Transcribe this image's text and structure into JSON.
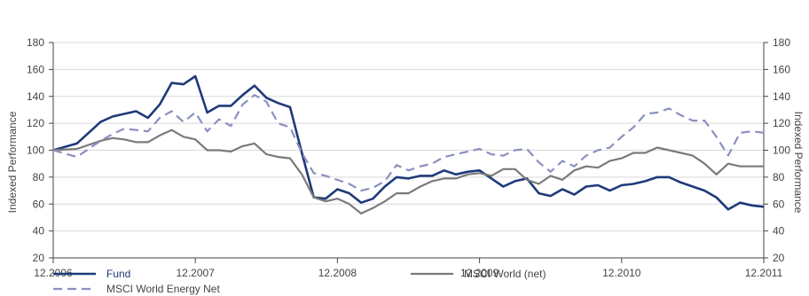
{
  "chart_data": {
    "type": "line",
    "title": "",
    "ylabel_left": "Indexed Performance",
    "ylabel_right": "Indexed Performance",
    "ylim": [
      20,
      180
    ],
    "yticks": [
      20,
      40,
      60,
      80,
      100,
      120,
      140,
      160,
      180
    ],
    "xlim": [
      0,
      60
    ],
    "xticks": [
      {
        "x": 0,
        "label": "12.2006"
      },
      {
        "x": 12,
        "label": "12.2007"
      },
      {
        "x": 24,
        "label": "12.2008"
      },
      {
        "x": 36,
        "label": "12.2009"
      },
      {
        "x": 48,
        "label": "12.2010"
      },
      {
        "x": 60,
        "label": "12.2011"
      }
    ],
    "grid": "horizontal",
    "colors": {
      "fund": "#1f3a7a",
      "energy": "#8a90c0",
      "world": "#7a7a7a",
      "axis": "#444444",
      "grid": "#d9d9d9"
    },
    "series": [
      {
        "name": "Fund",
        "style": "solid",
        "color": "#1f3a7a",
        "x": [
          0,
          2,
          4,
          5,
          6,
          7,
          8,
          9,
          10,
          11,
          12,
          13,
          14,
          15,
          16,
          17,
          18,
          19,
          20,
          21,
          22,
          23,
          24,
          25,
          26,
          27,
          28,
          29,
          30,
          31,
          32,
          33,
          34,
          35,
          36,
          37,
          38,
          39,
          40,
          41,
          42,
          43,
          44,
          45,
          46,
          47,
          48,
          49,
          50,
          51,
          52,
          53,
          54,
          55,
          56,
          57,
          58,
          59,
          60
        ],
        "values": [
          100,
          105,
          121,
          125,
          127,
          129,
          124,
          134,
          150,
          149,
          155,
          128,
          133,
          133,
          141,
          148,
          139,
          135,
          132,
          98,
          65,
          64,
          71,
          68,
          61,
          64,
          73,
          80,
          79,
          81,
          81,
          85,
          82,
          84,
          85,
          79,
          73,
          77,
          79,
          68,
          66,
          71,
          67,
          73,
          74,
          70,
          74,
          75,
          77,
          80,
          80,
          76,
          73,
          70,
          65,
          56,
          61,
          59,
          58
        ]
      },
      {
        "name": "MSCI World (net)",
        "style": "solid",
        "color": "#7a7a7a",
        "x": [
          0,
          2,
          4,
          5,
          6,
          7,
          8,
          9,
          10,
          11,
          12,
          13,
          14,
          15,
          16,
          17,
          18,
          19,
          20,
          21,
          22,
          23,
          24,
          25,
          26,
          27,
          28,
          29,
          30,
          31,
          32,
          33,
          34,
          35,
          36,
          37,
          38,
          39,
          40,
          41,
          42,
          43,
          44,
          45,
          46,
          47,
          48,
          49,
          50,
          51,
          52,
          53,
          54,
          55,
          56,
          57,
          58,
          59,
          60
        ],
        "values": [
          100,
          101,
          107,
          109,
          108,
          106,
          106,
          111,
          115,
          110,
          108,
          100,
          100,
          99,
          103,
          105,
          97,
          95,
          94,
          82,
          65,
          62,
          64,
          60,
          53,
          57,
          62,
          68,
          68,
          73,
          77,
          79,
          79,
          82,
          83,
          81,
          86,
          86,
          78,
          75,
          81,
          78,
          85,
          88,
          87,
          92,
          94,
          98,
          98,
          102,
          100,
          98,
          96,
          90,
          82,
          90,
          88,
          88,
          88
        ]
      },
      {
        "name": "MSCI World Energy Net",
        "style": "dashed",
        "color": "#8a90c0",
        "x": [
          0,
          2,
          4,
          5,
          6,
          7,
          8,
          9,
          10,
          11,
          12,
          13,
          14,
          15,
          16,
          17,
          18,
          19,
          20,
          21,
          22,
          23,
          24,
          25,
          26,
          27,
          28,
          29,
          30,
          31,
          32,
          33,
          34,
          35,
          36,
          37,
          38,
          39,
          40,
          41,
          42,
          43,
          44,
          45,
          46,
          47,
          48,
          49,
          50,
          51,
          52,
          53,
          54,
          55,
          56,
          57,
          58,
          59,
          60
        ],
        "values": [
          100,
          95,
          107,
          112,
          116,
          115,
          114,
          124,
          129,
          121,
          128,
          114,
          123,
          118,
          134,
          141,
          136,
          120,
          117,
          98,
          83,
          81,
          78,
          75,
          70,
          72,
          77,
          89,
          85,
          88,
          90,
          95,
          97,
          99,
          101,
          97,
          96,
          100,
          101,
          91,
          84,
          92,
          88,
          96,
          100,
          102,
          110,
          117,
          127,
          128,
          131,
          126,
          122,
          122,
          110,
          96,
          113,
          114,
          113
        ]
      }
    ],
    "legend": {
      "placement": "bottom",
      "items": [
        {
          "name": "Fund",
          "style": "solid",
          "color": "#1f3a7a"
        },
        {
          "name": "MSCI World (net)",
          "style": "solid",
          "color": "#7a7a7a"
        },
        {
          "name": "MSCI World Energy Net",
          "style": "dashed",
          "color": "#8a90c0"
        }
      ]
    }
  }
}
